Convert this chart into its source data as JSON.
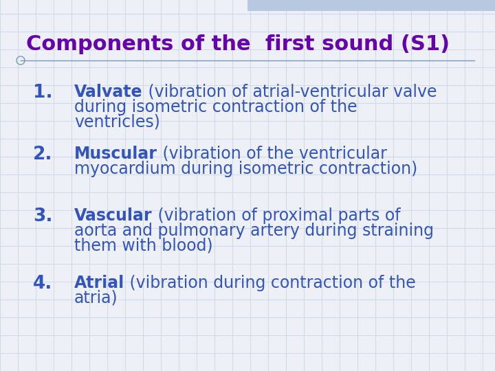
{
  "title": "Components of the  first sound (S1)",
  "title_color": "#6600aa",
  "title_fontsize": 22,
  "bg_color": "#eef0f8",
  "grid_color": "#c5cfe0",
  "header_band_color": "#b8c8e0",
  "items": [
    {
      "number": "1.",
      "bold_text": "Valvate",
      "lines": [
        " (vibration of atrial-ventricular valve",
        "during isometric contraction of the",
        "ventricles)"
      ]
    },
    {
      "number": "2.",
      "bold_text": "Muscular",
      "lines": [
        " (vibration of the ventricular",
        "myocardium during isometric contraction)"
      ]
    },
    {
      "number": "3.",
      "bold_text": "Vascular",
      "lines": [
        " (vibration of proximal parts of",
        "aorta and pulmonary artery during straining",
        "them with blood)"
      ]
    },
    {
      "number": "4.",
      "bold_text": "Atrial",
      "lines": [
        " (vibration during contraction of the",
        "atria)"
      ]
    }
  ],
  "number_color": "#3355bb",
  "bold_color": "#3355bb",
  "text_color": "#3355bb",
  "number_fontsize": 19,
  "text_fontsize": 17,
  "divider_color": "#7799bb",
  "circle_color": "#7799bb"
}
